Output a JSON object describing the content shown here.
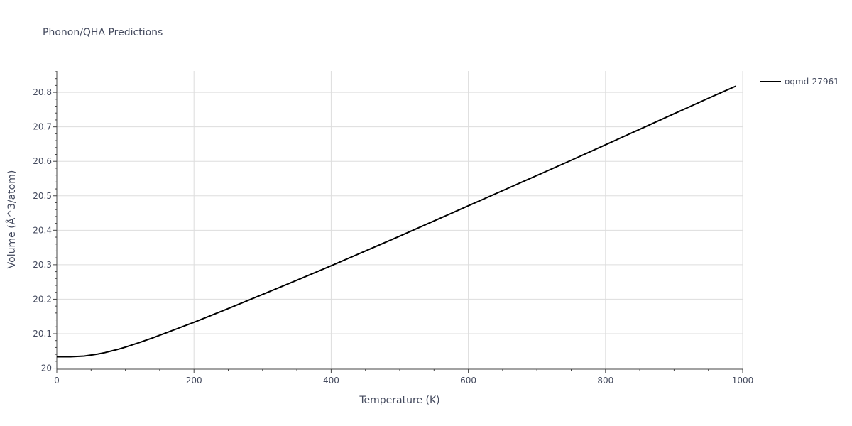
{
  "chart_data": {
    "type": "line",
    "title": "Phonon/QHA Predictions",
    "xlabel": "Temperature (K)",
    "ylabel": "Volume (Å^3/atom)",
    "xlim": [
      0,
      1000
    ],
    "ylim": [
      19.997,
      20.862
    ],
    "x_ticks": [
      0,
      200,
      400,
      600,
      800,
      1000
    ],
    "x_tick_labels": [
      "0",
      "200",
      "400",
      "600",
      "800",
      "1000"
    ],
    "y_ticks": [
      20.0,
      20.1,
      20.2,
      20.3,
      20.4,
      20.5,
      20.6,
      20.7,
      20.8
    ],
    "y_tick_labels": [
      "20",
      "20.1",
      "20.2",
      "20.3",
      "20.4",
      "20.5",
      "20.6",
      "20.7",
      "20.8"
    ],
    "grid": true,
    "legend_position": "top-right",
    "series": [
      {
        "name": "oqmd-27961",
        "color": "#000000",
        "x": [
          0,
          10,
          20,
          30,
          40,
          50,
          60,
          70,
          80,
          90,
          100,
          120,
          140,
          160,
          180,
          200,
          250,
          300,
          350,
          400,
          450,
          500,
          550,
          600,
          650,
          700,
          750,
          800,
          850,
          900,
          950,
          990
        ],
        "y": [
          20.033,
          20.033,
          20.033,
          20.034,
          20.035,
          20.038,
          20.041,
          20.045,
          20.05,
          20.055,
          20.061,
          20.074,
          20.088,
          20.103,
          20.118,
          20.133,
          20.173,
          20.214,
          20.255,
          20.297,
          20.34,
          20.383,
          20.427,
          20.471,
          20.515,
          20.559,
          20.603,
          20.648,
          20.693,
          20.738,
          20.783,
          20.818
        ]
      }
    ]
  }
}
